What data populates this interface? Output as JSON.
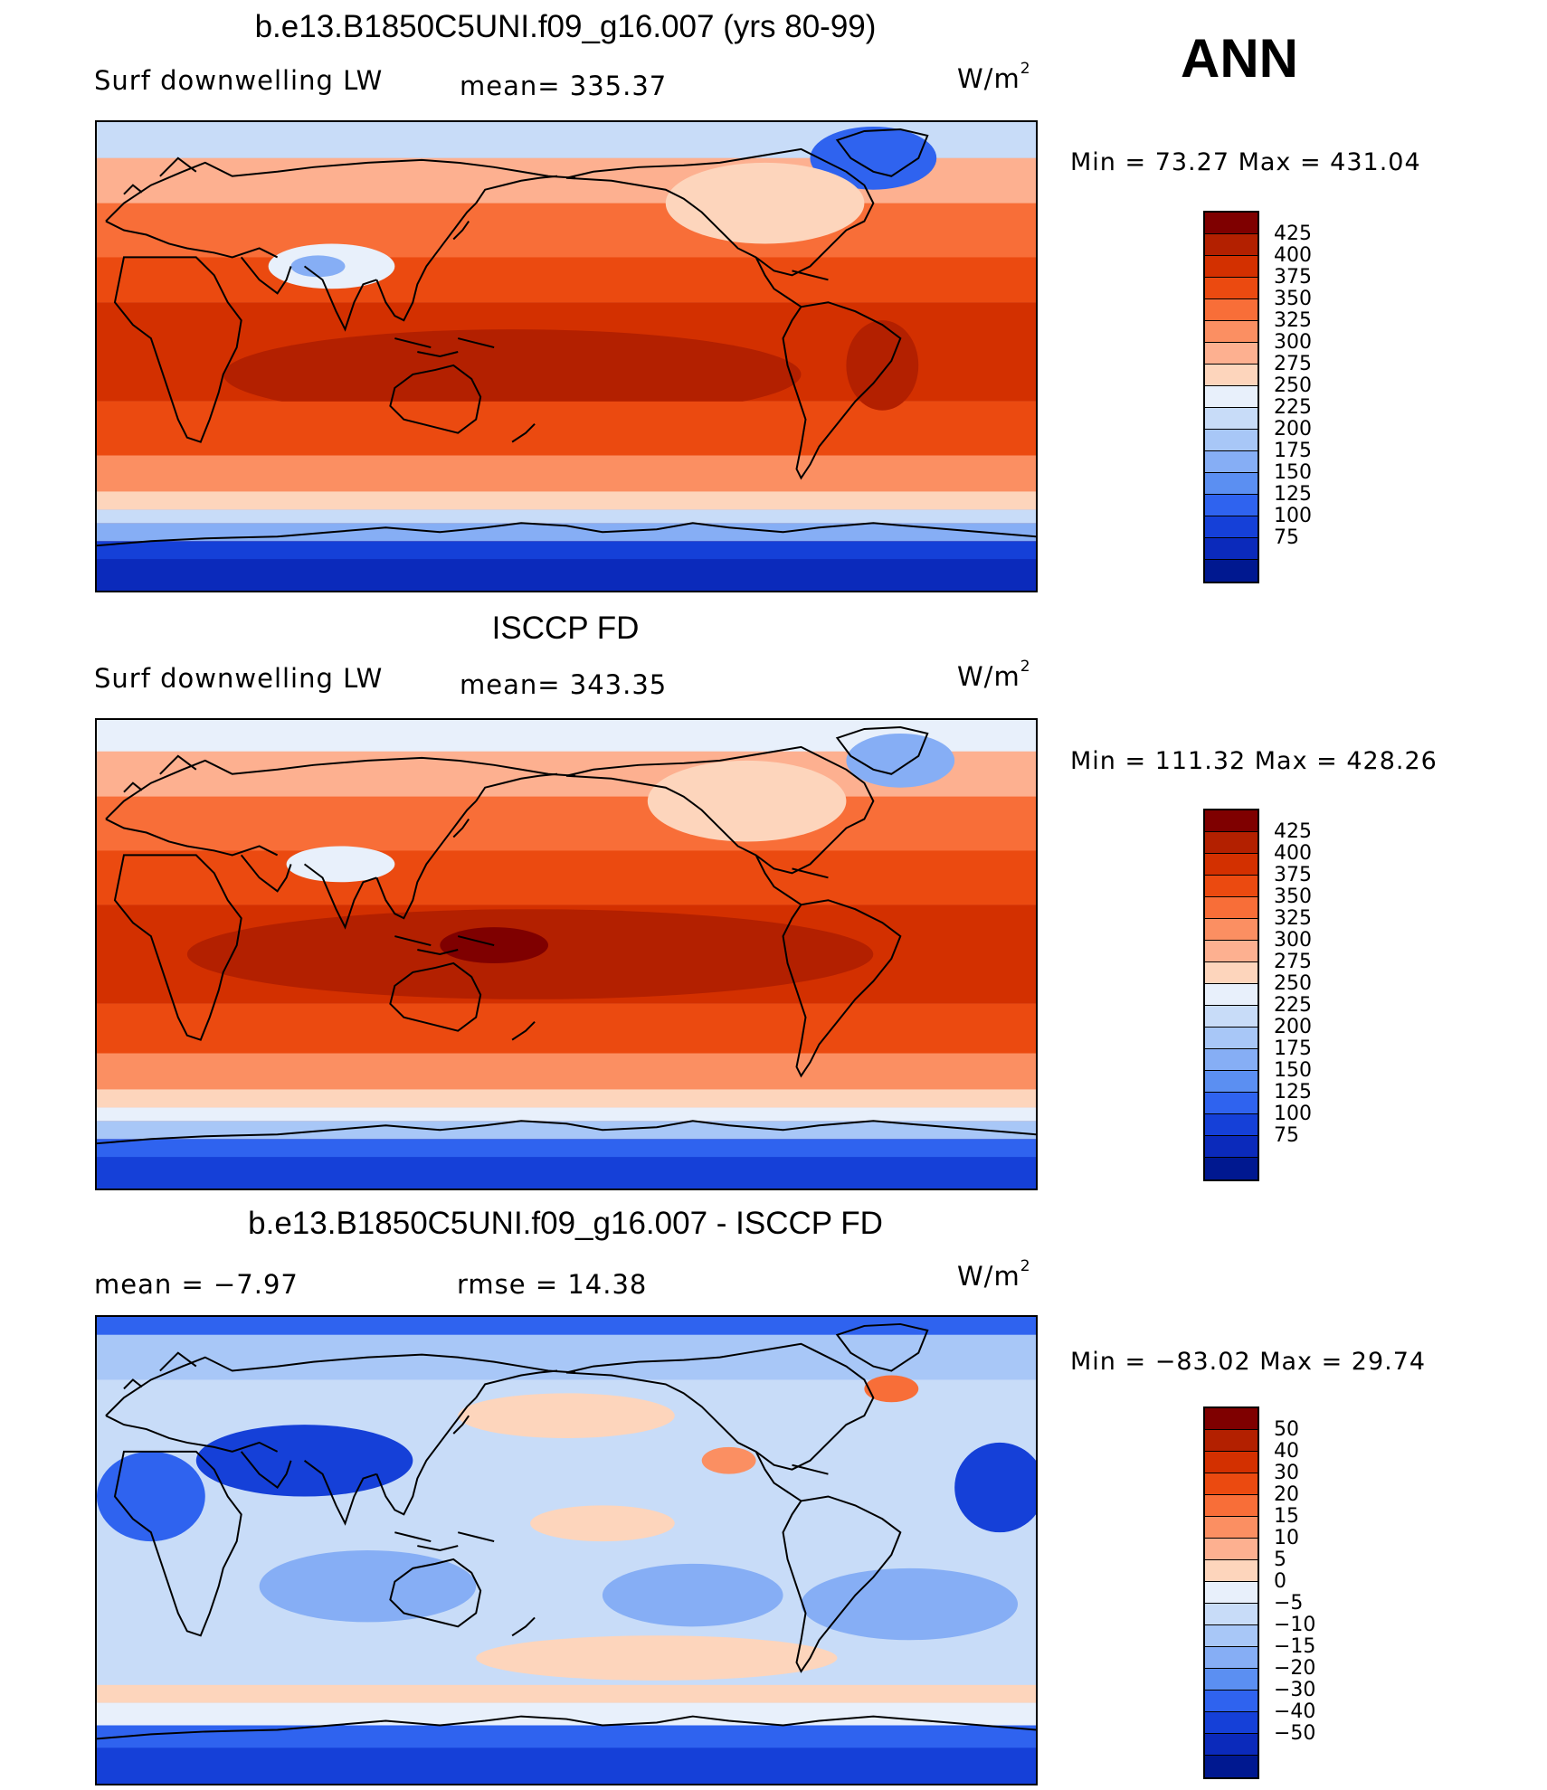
{
  "season": "ANN",
  "panels": [
    {
      "title": "b.e13.B1850C5UNI.f09_g16.007 (yrs 80-99)",
      "left_label": "Surf downwelling LW",
      "center_label": "mean= 335.37",
      "units": "W/m",
      "units_sup": "2",
      "minmax": "Min =   73.27 Max = 431.04",
      "colorbar": {
        "labels": [
          "425",
          "400",
          "375",
          "350",
          "325",
          "300",
          "275",
          "250",
          "225",
          "200",
          "175",
          "150",
          "125",
          "100",
          "75"
        ],
        "colors": [
          "#7f0000",
          "#b32000",
          "#d33000",
          "#eb4a10",
          "#f86e38",
          "#fb8f62",
          "#fdb090",
          "#fdd5bc",
          "#e8f0fb",
          "#c8dcf8",
          "#a8c7f7",
          "#86aef5",
          "#5b8ff2",
          "#2f63ef",
          "#1540d8",
          "#0b2abb",
          "#001890"
        ]
      },
      "map_style": "model"
    },
    {
      "title": "ISCCP FD",
      "left_label": "Surf downwelling LW",
      "center_label": "mean= 343.35",
      "units": "W/m",
      "units_sup": "2",
      "minmax": "Min = 111.32 Max = 428.26",
      "colorbar": {
        "labels": [
          "425",
          "400",
          "375",
          "350",
          "325",
          "300",
          "275",
          "250",
          "225",
          "200",
          "175",
          "150",
          "125",
          "100",
          "75"
        ],
        "colors": [
          "#7f0000",
          "#b32000",
          "#d33000",
          "#eb4a10",
          "#f86e38",
          "#fb8f62",
          "#fdb090",
          "#fdd5bc",
          "#e8f0fb",
          "#c8dcf8",
          "#a8c7f7",
          "#86aef5",
          "#5b8ff2",
          "#2f63ef",
          "#1540d8",
          "#0b2abb",
          "#001890"
        ]
      },
      "map_style": "obs"
    },
    {
      "title": "b.e13.B1850C5UNI.f09_g16.007 - ISCCP FD",
      "left_label": "mean =   −7.97",
      "center_label": "rmse =   14.38",
      "units": "W/m",
      "units_sup": "2",
      "minmax": "Min = −83.02 Max =   29.74",
      "colorbar": {
        "labels": [
          "50",
          "40",
          "30",
          "20",
          "15",
          "10",
          "5",
          "0",
          "−5",
          "−10",
          "−15",
          "−20",
          "−30",
          "−40",
          "−50"
        ],
        "colors": [
          "#7f0000",
          "#b32000",
          "#d33000",
          "#eb4a10",
          "#f86e38",
          "#fb8f62",
          "#fdb090",
          "#fdd5bc",
          "#e8f0fb",
          "#c8dcf8",
          "#a8c7f7",
          "#86aef5",
          "#5b8ff2",
          "#2f63ef",
          "#1540d8",
          "#0b2abb",
          "#001890"
        ]
      },
      "map_style": "diff"
    }
  ]
}
